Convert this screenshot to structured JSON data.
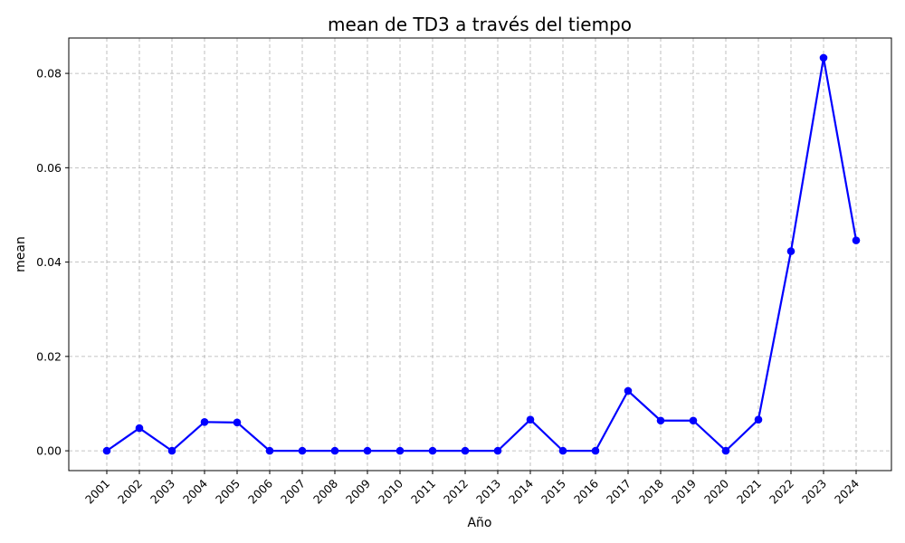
{
  "chart_data": {
    "type": "line",
    "title": "mean de TD3 a través del tiempo",
    "xlabel": "Año",
    "ylabel": "mean",
    "x": [
      "2001",
      "2002",
      "2003",
      "2004",
      "2005",
      "2006",
      "2007",
      "2008",
      "2009",
      "2010",
      "2011",
      "2012",
      "2013",
      "2014",
      "2015",
      "2016",
      "2017",
      "2018",
      "2019",
      "2020",
      "2021",
      "2022",
      "2023",
      "2024"
    ],
    "series": [
      {
        "values": [
          0.0,
          0.0048,
          0.0,
          0.0061,
          0.006,
          0.0,
          0.0,
          0.0,
          0.0,
          0.0,
          0.0,
          0.0,
          0.0,
          0.0066,
          0.0,
          0.0,
          0.0127,
          0.0064,
          0.0064,
          0.0,
          0.0066,
          0.0423,
          0.0833,
          0.0446
        ],
        "color": "#0000ff"
      }
    ],
    "yticks": [
      "0.00",
      "0.02",
      "0.04",
      "0.06",
      "0.08"
    ],
    "ytick_values": [
      0,
      0.02,
      0.04,
      0.06,
      0.08
    ],
    "ylim": [
      -0.0042,
      0.0875
    ],
    "grid": true,
    "grid_style": "dashed",
    "x_tick_rotation": "45deg"
  }
}
